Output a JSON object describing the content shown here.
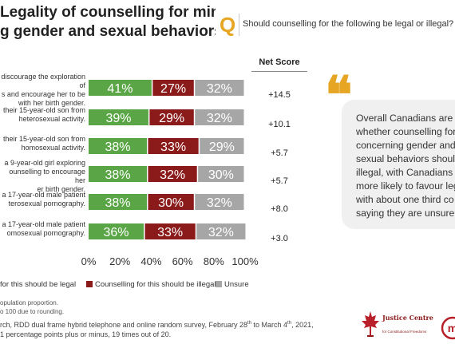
{
  "title": {
    "line1": "Legality of counselling for minors",
    "line2": "g gender and sexual behaviors"
  },
  "question": {
    "badge": "Q",
    "text": "Should counselling for the following be legal or illegal? [RA"
  },
  "net_score_header": "Net Score",
  "rows": [
    {
      "label": "discourage the exploration of\ns and encourage her to be\nwith her birth gender.",
      "net": "+14.5"
    },
    {
      "label": "their 15-year-old son from\nheterosexual activity.",
      "net": "+10.1"
    },
    {
      "label": "their 15-year-old son from\nhomosexual activity.",
      "net": "+5.7"
    },
    {
      "label": "a 9-year-old girl exploring\nounselling to encourage her\ner birth gender.",
      "net": "+5.7"
    },
    {
      "label": "a 17-year-old male patient\nterosexual pornography.",
      "net": "+8.0"
    },
    {
      "label": "a 17-year-old male patient\nomosexual pornography.",
      "net": "+3.0"
    }
  ],
  "chart_data": {
    "type": "bar",
    "orientation": "horizontal",
    "stacked": true,
    "xlim": [
      0,
      100
    ],
    "x_ticks": [
      "0%",
      "20%",
      "40%",
      "60%",
      "80%",
      "100%"
    ],
    "series": [
      {
        "name": "for this should be legal",
        "color": "#5aa646",
        "values": [
          41,
          39,
          38,
          38,
          38,
          36
        ],
        "labels": [
          "41%",
          "39%",
          "38%",
          "38%",
          "38%",
          "36%"
        ]
      },
      {
        "name": "Counselling for this should be illegal",
        "color": "#8b1a1a",
        "values": [
          27,
          29,
          33,
          32,
          30,
          33
        ],
        "labels": [
          "27%",
          "29%",
          "33%",
          "32%",
          "30%",
          "33%"
        ]
      },
      {
        "name": "Unsure",
        "color": "#a6a6a6",
        "values": [
          32,
          32,
          29,
          30,
          32,
          32
        ],
        "labels": [
          "32%",
          "32%",
          "29%",
          "30%",
          "32%",
          "32%"
        ]
      }
    ]
  },
  "callout": {
    "lines": [
      "Overall Canadians are d",
      "whether counselling for",
      "concerning gender and",
      "sexual behaviors should",
      "illegal, with Canadians g",
      "more likely to favour leg",
      "with about one third co",
      "saying they are unsure."
    ]
  },
  "footnotes": {
    "line1": "opulation proportion.",
    "line2": "o 100 due to rounding."
  },
  "methodology": {
    "line1_prefix": "rch, RDD dual frame hybrid telephone and online random survey, February 28",
    "sup1": "th",
    "line1_mid": " to March 4",
    "sup2": "th",
    "line1_end": ", 2021,",
    "line2": "1 percentage points plus or minus, 19 times out of 20."
  },
  "logo": {
    "name_line1": "Justice Centre",
    "name_line2": "for Constitutional Freedoms",
    "initial": "m"
  },
  "colors": {
    "accent": "#e6a523",
    "legal": "#5aa646",
    "illegal": "#8b1a1a",
    "unsure": "#a6a6a6",
    "logo_red": "#b8202a"
  }
}
